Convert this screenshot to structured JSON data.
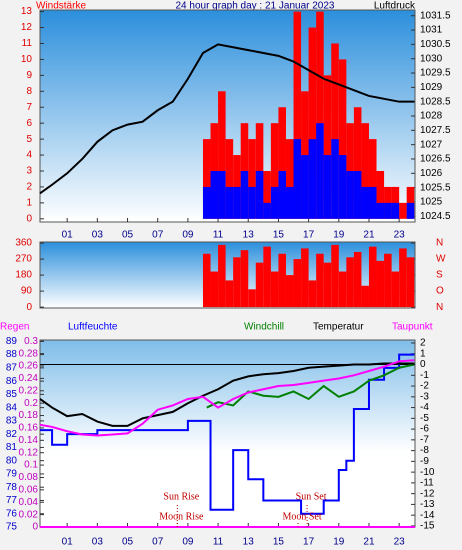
{
  "chart_data": [
    {
      "type": "bar",
      "title": "24 hour graph day : 21 Januar 2023",
      "xlim": [
        -0.8,
        24.05
      ],
      "xticks": [
        {
          "value": 1,
          "label": "01"
        },
        {
          "value": 3,
          "label": "03"
        },
        {
          "value": 5,
          "label": "05"
        },
        {
          "value": 7,
          "label": "07"
        },
        {
          "value": 9,
          "label": "09"
        },
        {
          "value": 11,
          "label": "11"
        },
        {
          "value": 13,
          "label": "13"
        },
        {
          "value": 15,
          "label": "15"
        },
        {
          "value": 17,
          "label": "17"
        },
        {
          "value": 19,
          "label": "19"
        },
        {
          "value": 21,
          "label": "21"
        },
        {
          "value": 23,
          "label": "23"
        }
      ],
      "ylim": [
        -0.2,
        13.1
      ],
      "yticks": [
        0,
        1,
        2,
        3,
        4,
        5,
        6,
        7,
        8,
        9,
        10,
        11,
        12,
        13
      ],
      "y2lim": [
        1024.3,
        1031.7
      ],
      "y2ticks": [
        1024.5,
        1025,
        1025.5,
        1026,
        1026.5,
        1027,
        1027.5,
        1028,
        1028.5,
        1029,
        1029.5,
        1030,
        1030.5,
        1031,
        1031.5
      ],
      "series": [
        {
          "name": "Windstärke",
          "type": "bar",
          "color": "#ff0000",
          "x": [
            10.25,
            10.75,
            11.25,
            11.75,
            12.25,
            12.75,
            13.25,
            13.75,
            14.25,
            14.75,
            15.25,
            15.75,
            16.25,
            16.75,
            17.25,
            17.75,
            18.25,
            18.75,
            19.25,
            19.75,
            20.25,
            20.75,
            21.25,
            21.75,
            22.25,
            22.75,
            23.25,
            23.75
          ],
          "values": [
            5,
            6,
            8,
            5,
            4,
            6,
            5,
            6,
            3,
            6,
            7,
            5,
            13,
            8,
            12,
            13,
            9,
            11,
            10,
            6,
            7,
            6,
            5,
            3,
            2,
            2,
            1,
            2
          ]
        },
        {
          "type": "bar",
          "color": "#0000ff",
          "x": [
            10.25,
            10.75,
            11.25,
            11.75,
            12.25,
            12.75,
            13.25,
            13.75,
            14.25,
            14.75,
            15.25,
            15.75,
            16.25,
            16.75,
            17.25,
            17.75,
            18.25,
            18.75,
            19.25,
            19.75,
            20.25,
            20.75,
            21.25,
            21.75,
            22.25,
            22.75,
            23.25,
            23.75
          ],
          "values": [
            2,
            3,
            3,
            2,
            2,
            3,
            2,
            3,
            1,
            2,
            3,
            2,
            5,
            4,
            5,
            6,
            4,
            5,
            4,
            3,
            3,
            2,
            2,
            1,
            1,
            1,
            0,
            1
          ]
        },
        {
          "name": "Luftdruck",
          "type": "line",
          "axis": "y2",
          "color": "#000000",
          "x": [
            -0.8,
            0,
            1,
            2,
            3,
            4,
            5,
            6,
            7,
            8,
            9,
            10,
            11,
            12,
            13,
            14,
            15,
            16,
            17,
            18,
            19,
            20,
            21,
            22,
            23,
            24
          ],
          "values": [
            1025.3,
            1025.6,
            1026.0,
            1026.5,
            1027.1,
            1027.5,
            1027.7,
            1027.8,
            1028.2,
            1028.5,
            1029.3,
            1030.2,
            1030.5,
            1030.4,
            1030.3,
            1030.2,
            1030.1,
            1029.9,
            1029.6,
            1029.3,
            1029.1,
            1028.9,
            1028.7,
            1028.6,
            1028.5,
            1028.5
          ]
        }
      ]
    },
    {
      "type": "bar",
      "xlim": [
        -0.8,
        24.05
      ],
      "ylim": [
        -5,
        366
      ],
      "yticks": [
        0,
        90,
        180,
        270,
        360
      ],
      "y2lim": [
        -5,
        366
      ],
      "y2ticks": [
        {
          "value": 360,
          "label": "N"
        },
        {
          "value": 270,
          "label": "W"
        },
        {
          "value": 180,
          "label": "S"
        },
        {
          "value": 90,
          "label": "O"
        },
        {
          "value": 0,
          "label": "N"
        }
      ],
      "series": [
        {
          "type": "bar",
          "color": "#ff0000",
          "x": [
            10.25,
            10.75,
            11.25,
            11.75,
            12.25,
            12.75,
            13.25,
            13.75,
            14.25,
            14.75,
            15.25,
            15.75,
            16.25,
            16.75,
            17.25,
            17.75,
            18.25,
            18.75,
            19.25,
            19.75,
            20.25,
            20.75,
            21.25,
            21.75,
            22.25,
            22.75,
            23.25,
            23.75
          ],
          "values": [
            300,
            200,
            350,
            150,
            280,
            320,
            100,
            250,
            340,
            200,
            300,
            180,
            270,
            330,
            150,
            300,
            250,
            350,
            200,
            280,
            310,
            120,
            340,
            260,
            300,
            200,
            330,
            280
          ]
        }
      ]
    },
    {
      "type": "line",
      "xlim": [
        -0.8,
        24.05
      ],
      "xticks": [
        {
          "value": 1,
          "label": "01"
        },
        {
          "value": 3,
          "label": "03"
        },
        {
          "value": 5,
          "label": "05"
        },
        {
          "value": 7,
          "label": "07"
        },
        {
          "value": 9,
          "label": "09"
        },
        {
          "value": 11,
          "label": "11"
        },
        {
          "value": 13,
          "label": "13"
        },
        {
          "value": 15,
          "label": "15"
        },
        {
          "value": 17,
          "label": "17"
        },
        {
          "value": 19,
          "label": "19"
        },
        {
          "value": 21,
          "label": "21"
        },
        {
          "value": 23,
          "label": "23"
        }
      ],
      "ylim": [
        75,
        89.1
      ],
      "yticks": [
        75,
        76,
        77,
        78,
        79,
        80,
        81,
        82,
        83,
        84,
        85,
        86,
        87,
        88,
        89
      ],
      "y3lim": [
        0,
        0.302
      ],
      "y3ticks": [
        0,
        0.02,
        0.04,
        0.06,
        0.08,
        0.1,
        0.12,
        0.14,
        0.16,
        0.18,
        0.2,
        0.22,
        0.24,
        0.26,
        0.28,
        0.3
      ],
      "y2lim": [
        -15.1,
        2.28
      ],
      "y2ticks": [
        2,
        1,
        0,
        -1,
        -2,
        -3,
        -4,
        -5,
        -6,
        -7,
        -8,
        -9,
        -10,
        -11,
        -12,
        -13,
        -14,
        -15
      ],
      "zero_line": true,
      "series": [
        {
          "name": "Regen",
          "type": "line",
          "axis": "y3",
          "color": "#ff00ff",
          "x": [
            -0.8,
            24.05
          ],
          "values": [
            0,
            0
          ]
        },
        {
          "name": "Luftfeuchte",
          "type": "line",
          "step": true,
          "color": "#0000ff",
          "x": [
            -0.8,
            0,
            1,
            2,
            3,
            4,
            5,
            6,
            7,
            8,
            9,
            10,
            10.5,
            11,
            12,
            13,
            14,
            15,
            16,
            16.5,
            17,
            18,
            19,
            19.5,
            20,
            21,
            22,
            23,
            24
          ],
          "values": [
            82.3,
            81.2,
            82,
            82,
            82.3,
            82.3,
            82.3,
            82.3,
            82.3,
            82.3,
            83,
            83,
            76.3,
            76.3,
            80.8,
            78.6,
            77,
            77,
            77,
            76,
            76,
            77,
            79.3,
            80,
            83.9,
            86.1,
            87,
            88,
            88
          ]
        },
        {
          "name": "Windchill",
          "type": "line",
          "axis": "y2",
          "color": "#008000",
          "x": [
            10.25,
            11,
            12,
            13,
            14,
            15,
            16,
            17,
            18,
            19,
            20,
            21,
            22,
            23,
            24
          ],
          "values": [
            -4,
            -3.5,
            -3.8,
            -2.5,
            -2.9,
            -3,
            -2.5,
            -3.2,
            -2,
            -3,
            -2.5,
            -1.5,
            -1,
            -0.3,
            0
          ]
        },
        {
          "name": "Temperatur",
          "type": "line",
          "axis": "y2",
          "color": "#000000",
          "x": [
            -0.8,
            0,
            1,
            2,
            3,
            4,
            5,
            6,
            7,
            8,
            9,
            10,
            11,
            12,
            13,
            14,
            15,
            16,
            17,
            18,
            19,
            20,
            21,
            22,
            23,
            24
          ],
          "values": [
            -3.2,
            -4.0,
            -4.8,
            -4.6,
            -5.3,
            -5.7,
            -5.7,
            -5.0,
            -4.7,
            -4.4,
            -3.6,
            -2.9,
            -2.3,
            -1.5,
            -1.1,
            -0.9,
            -0.8,
            -0.6,
            -0.3,
            -0.2,
            -0.1,
            0,
            0,
            0.1,
            0.1,
            0.1
          ]
        },
        {
          "name": "Taupunkt",
          "type": "line",
          "axis": "y2",
          "color": "#ff00ff",
          "x": [
            -0.8,
            0,
            1,
            2,
            3,
            4,
            5,
            6,
            7,
            8,
            9,
            10,
            11,
            12,
            13,
            14,
            15,
            16,
            17,
            18,
            19,
            20,
            21,
            22,
            23,
            24
          ],
          "values": [
            -5.6,
            -5.8,
            -6.2,
            -6.5,
            -6.6,
            -6.5,
            -6.4,
            -5.5,
            -4.2,
            -3.8,
            -3.2,
            -3.0,
            -4.0,
            -3.2,
            -2.6,
            -2.3,
            -2.0,
            -1.9,
            -1.7,
            -1.5,
            -1.3,
            -1.0,
            -0.6,
            -0.2,
            0.3,
            0.4
          ]
        }
      ],
      "annotations": [
        {
          "text": "Sun Rise",
          "x": 8.3
        },
        {
          "text": "Moon Rise",
          "x": 8.3
        },
        {
          "text": "Sun Set",
          "x": 16.9
        },
        {
          "text": "Moon Set",
          "x": 16.3
        }
      ]
    }
  ]
}
